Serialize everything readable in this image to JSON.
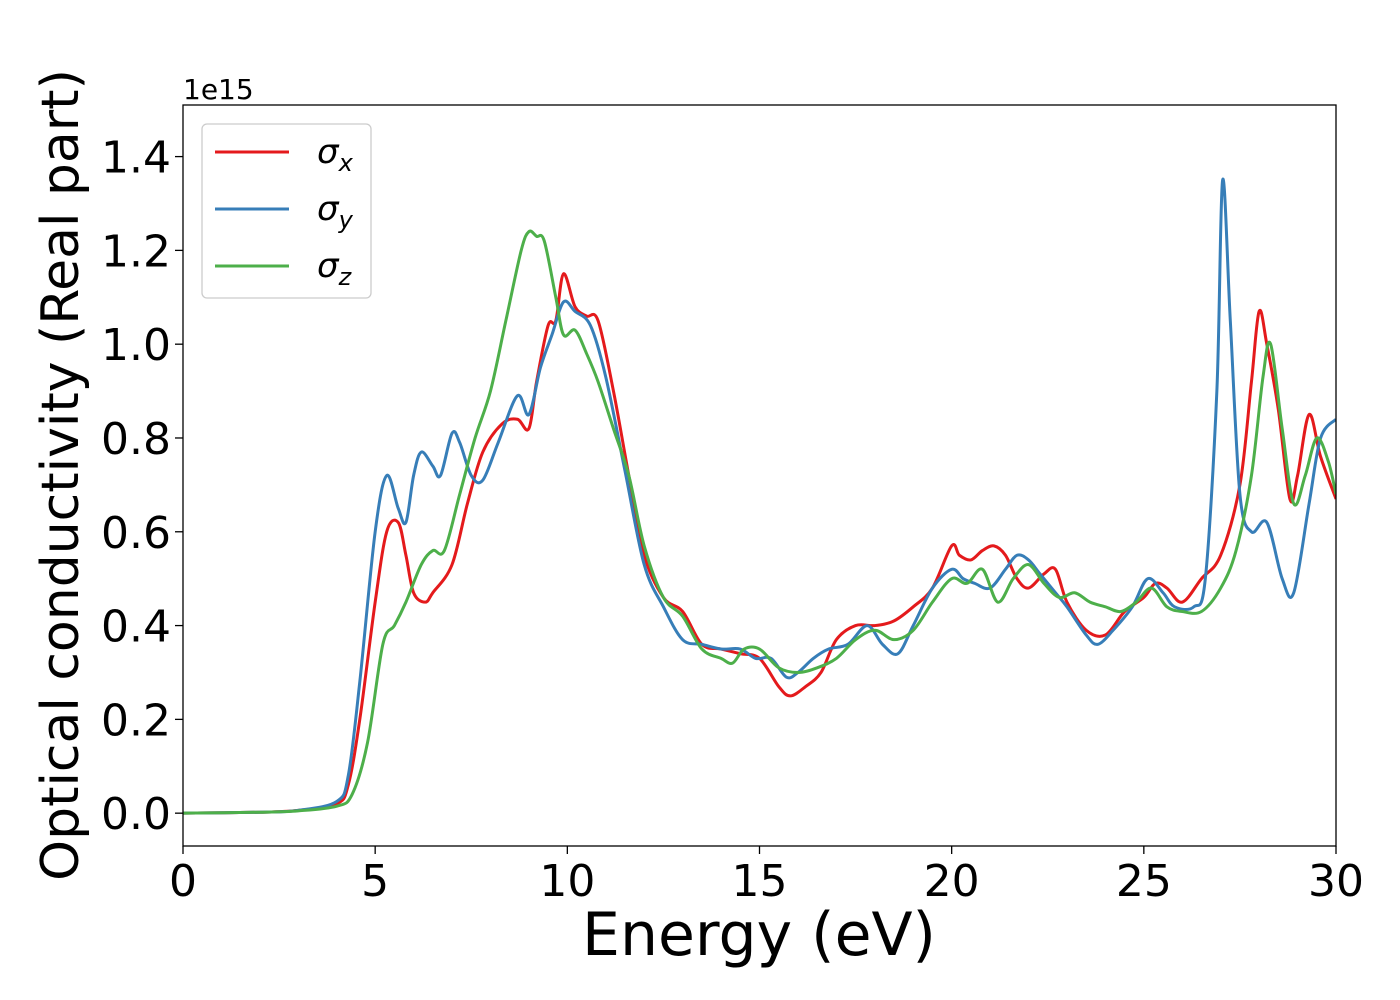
{
  "chart_data": {
    "type": "line",
    "title": "",
    "xlabel": "Energy (eV)",
    "ylabel": "Optical conductivity (Real part)",
    "y_offset_label": "1e15",
    "xlim": [
      0,
      30
    ],
    "ylim": [
      -0.07,
      1.51
    ],
    "x_ticks": [
      0,
      5,
      10,
      15,
      20,
      25,
      30
    ],
    "x_tick_labels": [
      "0",
      "5",
      "10",
      "15",
      "20",
      "25",
      "30"
    ],
    "y_ticks": [
      0.0,
      0.2,
      0.4,
      0.6,
      0.8,
      1.0,
      1.2,
      1.4
    ],
    "y_tick_labels": [
      "0.0",
      "0.2",
      "0.4",
      "0.6",
      "0.8",
      "1.0",
      "1.2",
      "1.4"
    ],
    "grid": false,
    "legend_position": "top-left",
    "series": [
      {
        "name": "σx",
        "symbol": "σ",
        "subscript": "x",
        "color": "#e41a1c",
        "x": [
          0,
          2,
          3,
          4,
          4.3,
          4.6,
          5.0,
          5.3,
          5.6,
          5.8,
          6.0,
          6.3,
          6.5,
          7.0,
          7.4,
          7.8,
          8.3,
          8.7,
          9.0,
          9.2,
          9.5,
          9.7,
          9.9,
          10.2,
          10.5,
          10.8,
          11.2,
          11.6,
          12.0,
          12.5,
          13.0,
          13.5,
          14.0,
          14.5,
          15.0,
          15.5,
          15.8,
          16.2,
          16.6,
          17.0,
          17.5,
          18.0,
          18.5,
          19.0,
          19.5,
          20.0,
          20.2,
          20.5,
          20.8,
          21.1,
          21.4,
          21.7,
          22.0,
          22.4,
          22.7,
          23.0,
          23.5,
          24.0,
          24.5,
          25.0,
          25.3,
          25.6,
          26.0,
          26.5,
          27.0,
          27.5,
          27.8,
          28.0,
          28.2,
          28.5,
          28.8,
          29.0,
          29.3,
          29.6,
          30.0
        ],
        "y": [
          0.0,
          0.002,
          0.006,
          0.02,
          0.06,
          0.2,
          0.45,
          0.6,
          0.62,
          0.55,
          0.47,
          0.45,
          0.47,
          0.53,
          0.66,
          0.77,
          0.83,
          0.84,
          0.82,
          0.92,
          1.04,
          1.05,
          1.15,
          1.08,
          1.06,
          1.05,
          0.9,
          0.72,
          0.55,
          0.46,
          0.43,
          0.36,
          0.35,
          0.34,
          0.33,
          0.27,
          0.25,
          0.27,
          0.3,
          0.37,
          0.4,
          0.4,
          0.41,
          0.44,
          0.48,
          0.57,
          0.55,
          0.54,
          0.56,
          0.57,
          0.55,
          0.5,
          0.48,
          0.51,
          0.52,
          0.45,
          0.39,
          0.38,
          0.43,
          0.46,
          0.49,
          0.48,
          0.45,
          0.5,
          0.55,
          0.7,
          0.92,
          1.07,
          1.0,
          0.86,
          0.67,
          0.72,
          0.85,
          0.76,
          0.67
        ]
      },
      {
        "name": "σy",
        "symbol": "σ",
        "subscript": "y",
        "color": "#377eb8",
        "x": [
          0,
          2,
          3,
          4,
          4.3,
          4.6,
          5.0,
          5.3,
          5.6,
          5.8,
          6.0,
          6.2,
          6.5,
          6.7,
          7.0,
          7.2,
          7.5,
          7.8,
          8.2,
          8.7,
          9.0,
          9.3,
          9.6,
          9.9,
          10.2,
          10.6,
          11.0,
          11.5,
          12.0,
          12.5,
          13.0,
          13.5,
          14.0,
          14.5,
          14.9,
          15.3,
          15.7,
          16.0,
          16.4,
          16.8,
          17.3,
          17.8,
          18.2,
          18.6,
          19.0,
          19.5,
          20.0,
          20.3,
          20.6,
          21.0,
          21.4,
          21.7,
          22.0,
          22.3,
          22.7,
          23.0,
          23.5,
          23.8,
          24.2,
          24.7,
          25.1,
          25.5,
          25.8,
          26.3,
          26.6,
          26.9,
          27.05,
          27.25,
          27.5,
          27.8,
          28.2,
          28.6,
          28.9,
          29.3,
          29.6,
          30.0
        ],
        "y": [
          0.0,
          0.002,
          0.006,
          0.025,
          0.08,
          0.28,
          0.6,
          0.72,
          0.65,
          0.62,
          0.72,
          0.77,
          0.74,
          0.72,
          0.81,
          0.79,
          0.72,
          0.71,
          0.79,
          0.89,
          0.85,
          0.95,
          1.02,
          1.09,
          1.07,
          1.04,
          0.93,
          0.73,
          0.53,
          0.44,
          0.37,
          0.36,
          0.35,
          0.35,
          0.33,
          0.33,
          0.29,
          0.3,
          0.33,
          0.35,
          0.36,
          0.4,
          0.36,
          0.34,
          0.4,
          0.48,
          0.52,
          0.5,
          0.49,
          0.48,
          0.52,
          0.55,
          0.54,
          0.51,
          0.47,
          0.44,
          0.38,
          0.36,
          0.39,
          0.44,
          0.5,
          0.47,
          0.44,
          0.44,
          0.5,
          0.9,
          1.35,
          1.05,
          0.68,
          0.6,
          0.62,
          0.5,
          0.47,
          0.66,
          0.8,
          0.84
        ]
      },
      {
        "name": "σz",
        "symbol": "σ",
        "subscript": "z",
        "color": "#4daf4a",
        "x": [
          0,
          2,
          3,
          4,
          4.4,
          4.8,
          5.2,
          5.5,
          5.8,
          6.2,
          6.5,
          6.8,
          7.2,
          7.6,
          8.0,
          8.4,
          8.8,
          9.0,
          9.2,
          9.4,
          9.7,
          9.9,
          10.2,
          10.5,
          10.8,
          11.2,
          11.6,
          12.0,
          12.5,
          13.0,
          13.5,
          14.0,
          14.3,
          14.6,
          15.0,
          15.5,
          16.0,
          16.5,
          17.0,
          17.5,
          18.0,
          18.5,
          19.0,
          19.5,
          20.0,
          20.4,
          20.8,
          21.2,
          21.6,
          22.0,
          22.4,
          22.8,
          23.2,
          23.6,
          24.0,
          24.4,
          24.8,
          25.2,
          25.6,
          26.0,
          26.5,
          27.0,
          27.4,
          27.8,
          28.1,
          28.3,
          28.6,
          28.9,
          29.2,
          29.5,
          29.8,
          30.0
        ],
        "y": [
          0.0,
          0.002,
          0.005,
          0.015,
          0.04,
          0.15,
          0.36,
          0.4,
          0.45,
          0.53,
          0.56,
          0.56,
          0.68,
          0.8,
          0.9,
          1.05,
          1.2,
          1.24,
          1.23,
          1.22,
          1.1,
          1.02,
          1.03,
          0.98,
          0.92,
          0.82,
          0.72,
          0.57,
          0.46,
          0.42,
          0.35,
          0.33,
          0.32,
          0.35,
          0.35,
          0.31,
          0.3,
          0.31,
          0.33,
          0.37,
          0.39,
          0.37,
          0.39,
          0.45,
          0.5,
          0.49,
          0.52,
          0.45,
          0.5,
          0.53,
          0.49,
          0.46,
          0.47,
          0.45,
          0.44,
          0.43,
          0.45,
          0.48,
          0.44,
          0.43,
          0.43,
          0.48,
          0.56,
          0.72,
          0.93,
          1.0,
          0.82,
          0.66,
          0.72,
          0.8,
          0.75,
          0.68
        ]
      }
    ]
  }
}
